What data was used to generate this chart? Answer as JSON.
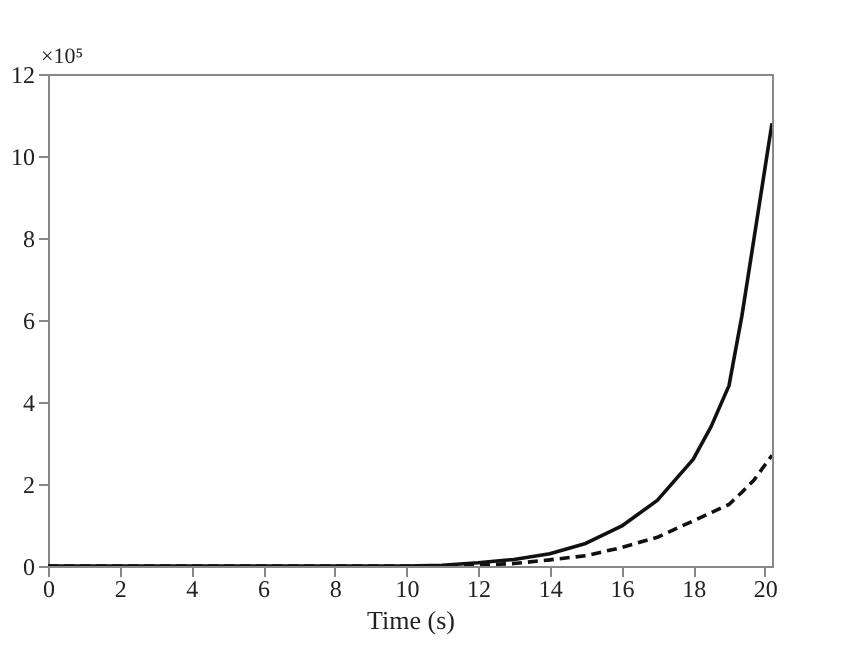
{
  "chart_data": {
    "type": "line",
    "xlabel": "Time (s)",
    "ylabel": "×10⁵",
    "xlim": [
      0,
      20.2
    ],
    "xticks": [
      0,
      2,
      4,
      6,
      8,
      10,
      12,
      14,
      16,
      18,
      20
    ],
    "ylim": [
      0,
      12
    ],
    "yticks": [
      0,
      2,
      4,
      6,
      8,
      10,
      12
    ],
    "grid": false,
    "marker": "none",
    "series": [
      {
        "color": "#111111",
        "line_style": "solid",
        "x": [
          0,
          2,
          4,
          6,
          8,
          10,
          11,
          12,
          13,
          14,
          15,
          16,
          17,
          18,
          18.5,
          19,
          19.36,
          19.7,
          20.2
        ],
        "values": [
          0,
          0,
          0,
          0,
          0,
          0,
          0.02,
          0.08,
          0.16,
          0.3,
          0.55,
          0.97,
          1.6,
          2.6,
          3.4,
          4.4,
          6.1,
          8,
          10.8
        ]
      },
      {
        "color": "#111111",
        "line_style": "dashed",
        "x": [
          0,
          2,
          4,
          6,
          8,
          10,
          11,
          12,
          13,
          14,
          15,
          16,
          17,
          18,
          19,
          19.36,
          19.7,
          20.2
        ],
        "values": [
          0,
          0,
          0,
          0,
          0,
          0,
          0,
          0.02,
          0.06,
          0.15,
          0.25,
          0.45,
          0.7,
          1.1,
          1.5,
          1.8,
          2.1,
          2.7
        ]
      }
    ]
  }
}
